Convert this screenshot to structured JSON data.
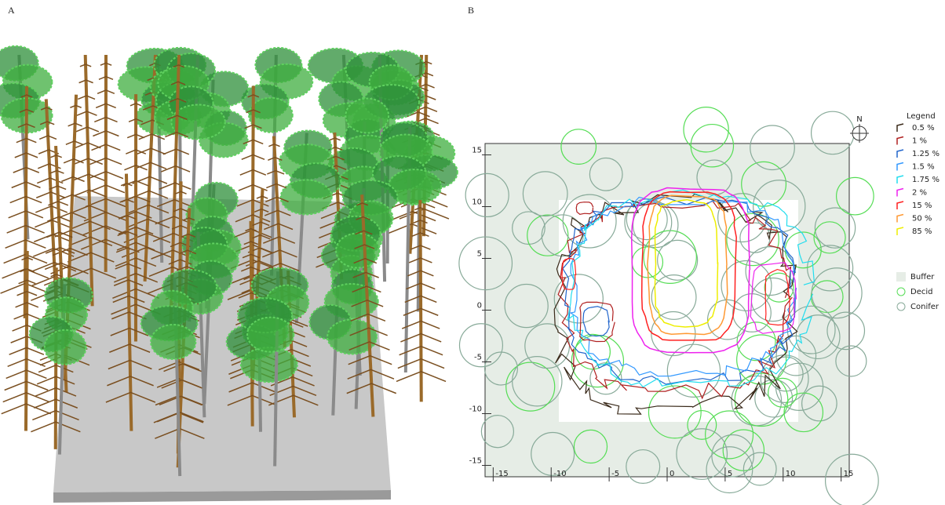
{
  "panels": [
    {
      "label": "A"
    },
    {
      "label": "B"
    }
  ],
  "chart_data": {
    "type": "contour",
    "xlim": [
      -15.7,
      15.7
    ],
    "ylim": [
      -16.1,
      16.1
    ],
    "xticks": [
      -15,
      -10,
      -5,
      0,
      5,
      10,
      15
    ],
    "yticks": [
      15,
      10,
      5,
      0,
      -5,
      -10,
      -15
    ],
    "compass": "N",
    "legend_title": "Legend",
    "series": [
      {
        "name": "0.5 %",
        "color": "#3a2a1a"
      },
      {
        "name": "1 %",
        "color": "#b02020"
      },
      {
        "name": "1.25 %",
        "color": "#2266cc"
      },
      {
        "name": "1.5 %",
        "color": "#3399ff"
      },
      {
        "name": "1.75 %",
        "color": "#22ddee"
      },
      {
        "name": "2 %",
        "color": "#ee22ee"
      },
      {
        "name": "15 %",
        "color": "#ff2020"
      },
      {
        "name": "50 %",
        "color": "#ff9933"
      },
      {
        "name": "85 %",
        "color": "#eeee00"
      }
    ],
    "markers": [
      {
        "name": "Buffer",
        "color": "#e6ede6"
      },
      {
        "name": "Decid",
        "color": "#55dd55"
      },
      {
        "name": "Conifer",
        "color": "#88aa99"
      }
    ]
  }
}
